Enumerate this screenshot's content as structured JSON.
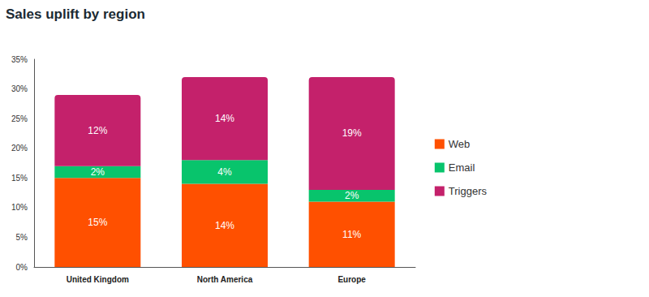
{
  "chart_data": {
    "type": "bar",
    "title": "Sales uplift by region",
    "categories": [
      "United Kingdom",
      "North America",
      "Europe"
    ],
    "series": [
      {
        "name": "Web",
        "color": "#ff5000",
        "values": [
          15,
          14,
          11
        ],
        "value_labels": [
          "15%",
          "14%",
          "11%"
        ]
      },
      {
        "name": "Email",
        "color": "#08c46c",
        "values": [
          2,
          4,
          2
        ],
        "value_labels": [
          "2%",
          "4%",
          "2%"
        ]
      },
      {
        "name": "Triggers",
        "color": "#c4216b",
        "values": [
          12,
          14,
          19
        ],
        "value_labels": [
          "12%",
          "14%",
          "19%"
        ]
      }
    ],
    "ylim": [
      0,
      35
    ],
    "yticks": [
      {
        "value": 0,
        "label": "0%"
      },
      {
        "value": 5,
        "label": "5%"
      },
      {
        "value": 10,
        "label": "10%"
      },
      {
        "value": 15,
        "label": "15%"
      },
      {
        "value": 20,
        "label": "20%"
      },
      {
        "value": 25,
        "label": "25%"
      },
      {
        "value": 30,
        "label": "30%"
      },
      {
        "value": 35,
        "label": "35%"
      }
    ],
    "stacked": true,
    "data_labels": true,
    "grid": false,
    "legend": "right"
  }
}
